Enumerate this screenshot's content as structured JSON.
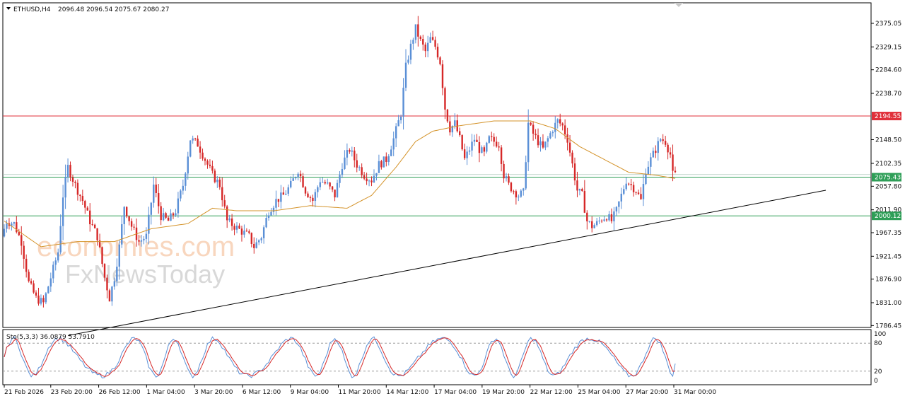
{
  "header": {
    "symbol": "ETHUSD,H4",
    "ohlc": "2096.48 2096.54 2075.67 2080.27"
  },
  "watermark": {
    "brand1": "economies.com",
    "brand2": "FxNewsToday"
  },
  "chart_data": {
    "type": "candlestick",
    "price_ticks": [
      "2375.05",
      "2329.15",
      "2284.60",
      "2238.70",
      "2194.55",
      "2148.50",
      "2102.35",
      "2075.43",
      "2057.80",
      "2011.90",
      "2000.12",
      "1967.35",
      "1921.45",
      "1876.90",
      "1831.00",
      "1786.45"
    ],
    "price_range": [
      1786.45,
      2395
    ],
    "x_labels": [
      "21 Feb 2026",
      "23 Feb 20:00",
      "26 Feb 12:00",
      "1 Mar 04:00",
      "3 Mar 20:00",
      "6 Mar 12:00",
      "9 Mar 04:00",
      "11 Mar 20:00",
      "14 Mar 12:00",
      "17 Mar 04:00",
      "19 Mar 20:00",
      "22 Mar 12:00",
      "25 Mar 04:00",
      "27 Mar 20:00",
      "31 Mar 00:00"
    ],
    "horizontal_levels": [
      {
        "price": 2194.55,
        "label": "2194.55",
        "color": "#e0303a"
      },
      {
        "price": 2075.43,
        "label": "2075.43",
        "color": "#2e9e57"
      },
      {
        "price": 2000.12,
        "label": "2000.12",
        "color": "#2e9e57"
      }
    ],
    "trendline": {
      "from_index": 0.08,
      "from_price": 1800,
      "to_index": 0.935,
      "to_price": 2050,
      "color": "#000000"
    },
    "colors": {
      "up": "#5a8fd6",
      "down": "#d62828",
      "ma": "#d4932a"
    },
    "anchors": [
      [
        0,
        1960
      ],
      [
        2,
        1990
      ],
      [
        5,
        1985
      ],
      [
        8,
        1950
      ],
      [
        11,
        1870
      ],
      [
        14,
        1840
      ],
      [
        17,
        1830
      ],
      [
        20,
        1880
      ],
      [
        23,
        1930
      ],
      [
        25,
        2040
      ],
      [
        27,
        2095
      ],
      [
        30,
        2060
      ],
      [
        33,
        2030
      ],
      [
        36,
        1990
      ],
      [
        39,
        1960
      ],
      [
        42,
        1880
      ],
      [
        44,
        1840
      ],
      [
        46,
        1880
      ],
      [
        48,
        1940
      ],
      [
        50,
        2020
      ],
      [
        53,
        1980
      ],
      [
        56,
        1950
      ],
      [
        59,
        1960
      ],
      [
        62,
        2060
      ],
      [
        65,
        2000
      ],
      [
        68,
        1990
      ],
      [
        71,
        2010
      ],
      [
        74,
        2060
      ],
      [
        77,
        2150
      ],
      [
        80,
        2140
      ],
      [
        83,
        2110
      ],
      [
        86,
        2080
      ],
      [
        89,
        2060
      ],
      [
        92,
        1990
      ],
      [
        95,
        1980
      ],
      [
        98,
        1970
      ],
      [
        101,
        1960
      ],
      [
        103,
        1940
      ],
      [
        106,
        1960
      ],
      [
        109,
        2010
      ],
      [
        112,
        2030
      ],
      [
        115,
        2040
      ],
      [
        118,
        2060
      ],
      [
        121,
        2090
      ],
      [
        124,
        2050
      ],
      [
        127,
        2030
      ],
      [
        130,
        2070
      ],
      [
        133,
        2060
      ],
      [
        136,
        2040
      ],
      [
        139,
        2100
      ],
      [
        142,
        2130
      ],
      [
        145,
        2100
      ],
      [
        148,
        2080
      ],
      [
        151,
        2070
      ],
      [
        154,
        2100
      ],
      [
        157,
        2110
      ],
      [
        160,
        2150
      ],
      [
        163,
        2200
      ],
      [
        165,
        2290
      ],
      [
        167,
        2330
      ],
      [
        169,
        2365
      ],
      [
        171,
        2340
      ],
      [
        173,
        2320
      ],
      [
        175,
        2345
      ],
      [
        177,
        2330
      ],
      [
        179,
        2300
      ],
      [
        181,
        2210
      ],
      [
        183,
        2170
      ],
      [
        185,
        2180
      ],
      [
        187,
        2150
      ],
      [
        189,
        2110
      ],
      [
        191,
        2130
      ],
      [
        193,
        2150
      ],
      [
        195,
        2130
      ],
      [
        197,
        2120
      ],
      [
        199,
        2150
      ],
      [
        201,
        2145
      ],
      [
        203,
        2140
      ],
      [
        205,
        2080
      ],
      [
        207,
        2060
      ],
      [
        209,
        2050
      ],
      [
        211,
        2040
      ],
      [
        213,
        2045
      ],
      [
        215,
        2180
      ],
      [
        217,
        2160
      ],
      [
        219,
        2145
      ],
      [
        221,
        2130
      ],
      [
        223,
        2150
      ],
      [
        225,
        2170
      ],
      [
        227,
        2185
      ],
      [
        229,
        2175
      ],
      [
        231,
        2150
      ],
      [
        233,
        2100
      ],
      [
        235,
        2050
      ],
      [
        237,
        2040
      ],
      [
        239,
        1990
      ],
      [
        241,
        1980
      ],
      [
        243,
        1985
      ],
      [
        245,
        1995
      ],
      [
        247,
        2000
      ],
      [
        249,
        1990
      ],
      [
        251,
        2010
      ],
      [
        253,
        2040
      ],
      [
        255,
        2070
      ],
      [
        257,
        2060
      ],
      [
        259,
        2050
      ],
      [
        261,
        2030
      ],
      [
        263,
        2090
      ],
      [
        265,
        2110
      ],
      [
        267,
        2130
      ],
      [
        269,
        2150
      ],
      [
        271,
        2145
      ],
      [
        273,
        2120
      ],
      [
        274,
        2080
      ]
    ],
    "ma_anchors": [
      [
        0,
        1990
      ],
      [
        15,
        1940
      ],
      [
        30,
        1950
      ],
      [
        45,
        1950
      ],
      [
        60,
        1975
      ],
      [
        75,
        1985
      ],
      [
        85,
        2015
      ],
      [
        95,
        2010
      ],
      [
        110,
        2010
      ],
      [
        125,
        2020
      ],
      [
        140,
        2015
      ],
      [
        150,
        2040
      ],
      [
        160,
        2095
      ],
      [
        168,
        2145
      ],
      [
        175,
        2165
      ],
      [
        185,
        2175
      ],
      [
        200,
        2185
      ],
      [
        215,
        2185
      ],
      [
        225,
        2170
      ],
      [
        235,
        2135
      ],
      [
        245,
        2110
      ],
      [
        255,
        2085
      ],
      [
        265,
        2080
      ],
      [
        274,
        2073
      ]
    ],
    "oscillator": {
      "label": "Sto(5,3,3) 36.0879 53.7910",
      "ticks": [
        "100",
        "80",
        "20",
        "0"
      ],
      "levels": [
        20,
        80
      ],
      "main_color": "#5a8fd6",
      "signal_color": "#d62828"
    }
  }
}
